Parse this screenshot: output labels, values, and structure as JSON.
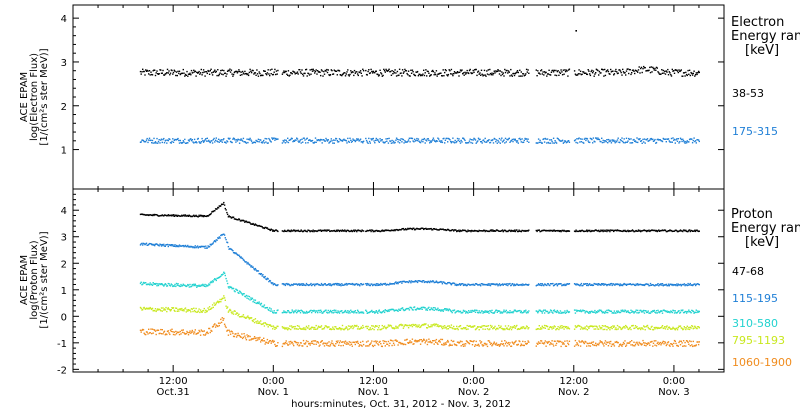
{
  "chart_data": [
    {
      "type": "scatter",
      "panel": "electron",
      "ylabel_lines": [
        "ACE EPAM",
        "log(Electron Flux)",
        "[1/(cm²s ster MeV)]"
      ],
      "ylim": [
        0.1,
        4.3
      ],
      "yticks": [
        "1",
        "2",
        "3",
        "4"
      ],
      "legend_title_lines": [
        "Electron",
        "Energy range",
        "[keV]"
      ],
      "series": [
        {
          "name": "38-53",
          "color": "#000000",
          "approx_level": 2.77
        },
        {
          "name": "175-315",
          "color": "#1f7fd6",
          "approx_level": 1.22
        }
      ],
      "annotations": [
        {
          "label": "spike",
          "x_hours": 60.2,
          "y": 3.73
        }
      ]
    },
    {
      "type": "scatter",
      "panel": "proton",
      "ylabel_lines": [
        "ACE EPAM",
        "log(Proton Flux)",
        "[1/(cm²s ster MeV)]"
      ],
      "ylim": [
        -2.1,
        4.8
      ],
      "yticks": [
        "-2",
        "-1",
        "0",
        "1",
        "2",
        "3",
        "4"
      ],
      "legend_title_lines": [
        "Proton",
        "Energy range",
        "[keV]"
      ],
      "series": [
        {
          "name": "47-68",
          "color": "#000000",
          "approx_start": 3.85,
          "approx_end": 3.25
        },
        {
          "name": "115-195",
          "color": "#1f7fd6",
          "approx_start": 2.75,
          "approx_end": 1.22
        },
        {
          "name": "310-580",
          "color": "#22d2cf",
          "approx_start": 1.25,
          "approx_end": 0.2
        },
        {
          "name": "795-1193",
          "color": "#c8e81e",
          "approx_start": 0.3,
          "approx_end": -0.4
        },
        {
          "name": "1060-1900",
          "color": "#f08c1e",
          "approx_start": -0.55,
          "approx_end": -1.0
        }
      ]
    }
  ],
  "x_axis": {
    "ticks": [
      {
        "hour": 12,
        "label": "12:00",
        "sub": "Oct.31"
      },
      {
        "hour": 24,
        "label": "0:00",
        "sub": "Nov. 1"
      },
      {
        "hour": 36,
        "label": "12:00",
        "sub": "Nov. 1"
      },
      {
        "hour": 48,
        "label": "0:00",
        "sub": "Nov. 2"
      },
      {
        "hour": 60,
        "label": "12:00",
        "sub": "Nov. 2"
      },
      {
        "hour": 72,
        "label": "0:00",
        "sub": "Nov. 3"
      }
    ],
    "title": "hours:minutes, Oct. 31, 2012 - Nov.  3, 2012",
    "range_hours": [
      0,
      78
    ]
  }
}
